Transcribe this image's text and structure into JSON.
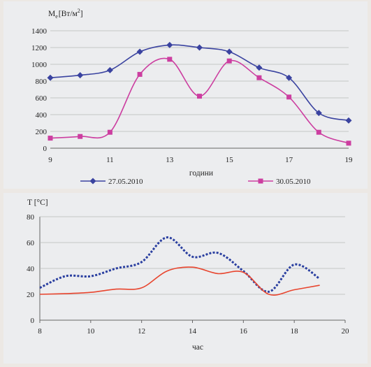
{
  "chart_data": [
    {
      "type": "line",
      "ylabel": "M",
      "ylabel_sub": "e",
      "ylabel_unit": "[Вт/м",
      "ylabel_sup": "2",
      "ylabel_close": "]",
      "xlabel": "години",
      "ylim": [
        0,
        1400
      ],
      "xlim": [
        9,
        19
      ],
      "yticks": [
        0,
        200,
        400,
        600,
        800,
        1000,
        1200,
        1400
      ],
      "xticks": [
        9,
        11,
        13,
        15,
        17,
        19
      ],
      "grid": "horizontal",
      "legend_position": "bottom",
      "x": [
        9,
        10,
        11,
        12,
        13,
        14,
        15,
        16,
        17,
        18,
        19
      ],
      "series": [
        {
          "name": "27.05.2010",
          "color": "#3a43a0",
          "marker": "diamond",
          "values": [
            840,
            870,
            930,
            1150,
            1230,
            1200,
            1150,
            960,
            840,
            420,
            330
          ]
        },
        {
          "name": "30.05.2010",
          "color": "#cc3ea0",
          "marker": "square",
          "values": [
            120,
            140,
            190,
            880,
            1060,
            620,
            1040,
            840,
            610,
            190,
            60
          ]
        }
      ]
    },
    {
      "type": "line",
      "ylabel": "T [°C]",
      "xlabel": "час",
      "ylim": [
        0,
        80
      ],
      "xlim": [
        8,
        20
      ],
      "yticks": [
        0,
        20,
        40,
        60,
        80
      ],
      "xticks": [
        8,
        10,
        12,
        14,
        16,
        18,
        20
      ],
      "grid": "horizontal",
      "series": [
        {
          "style": "dotted",
          "color": "#2a3fa0",
          "x": [
            8,
            9,
            10,
            11,
            12,
            13,
            14,
            15,
            16,
            17,
            18,
            19
          ],
          "values": [
            25,
            34,
            34,
            40,
            45,
            64,
            49,
            52,
            38,
            22,
            43,
            32
          ]
        },
        {
          "style": "solid",
          "color": "#e8452e",
          "x": [
            8,
            9,
            10,
            11,
            12,
            13,
            14,
            15,
            16,
            17,
            18,
            19
          ],
          "values": [
            20,
            20.5,
            21.5,
            24,
            25,
            38,
            41,
            36,
            37,
            20,
            23.5,
            27
          ]
        }
      ]
    }
  ]
}
